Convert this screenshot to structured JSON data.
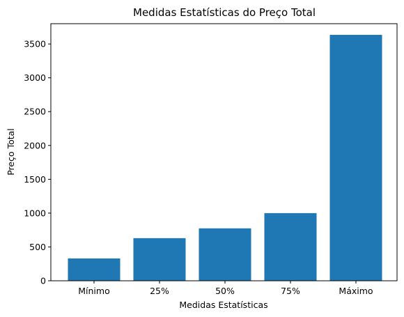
{
  "chart_data": {
    "type": "bar",
    "title": "Medidas Estatísticas do Preço Total",
    "xlabel": "Medidas Estatísticas",
    "ylabel": "Preço Total",
    "categories": [
      "Mínimo",
      "25%",
      "50%",
      "75%",
      "Máximo"
    ],
    "values": [
      330,
      630,
      775,
      1000,
      3635
    ],
    "ylim": [
      0,
      3800
    ],
    "yticks": [
      0,
      500,
      1000,
      1500,
      2000,
      2500,
      3000,
      3500
    ],
    "grid": false,
    "bar_color": "#1f77b4"
  }
}
